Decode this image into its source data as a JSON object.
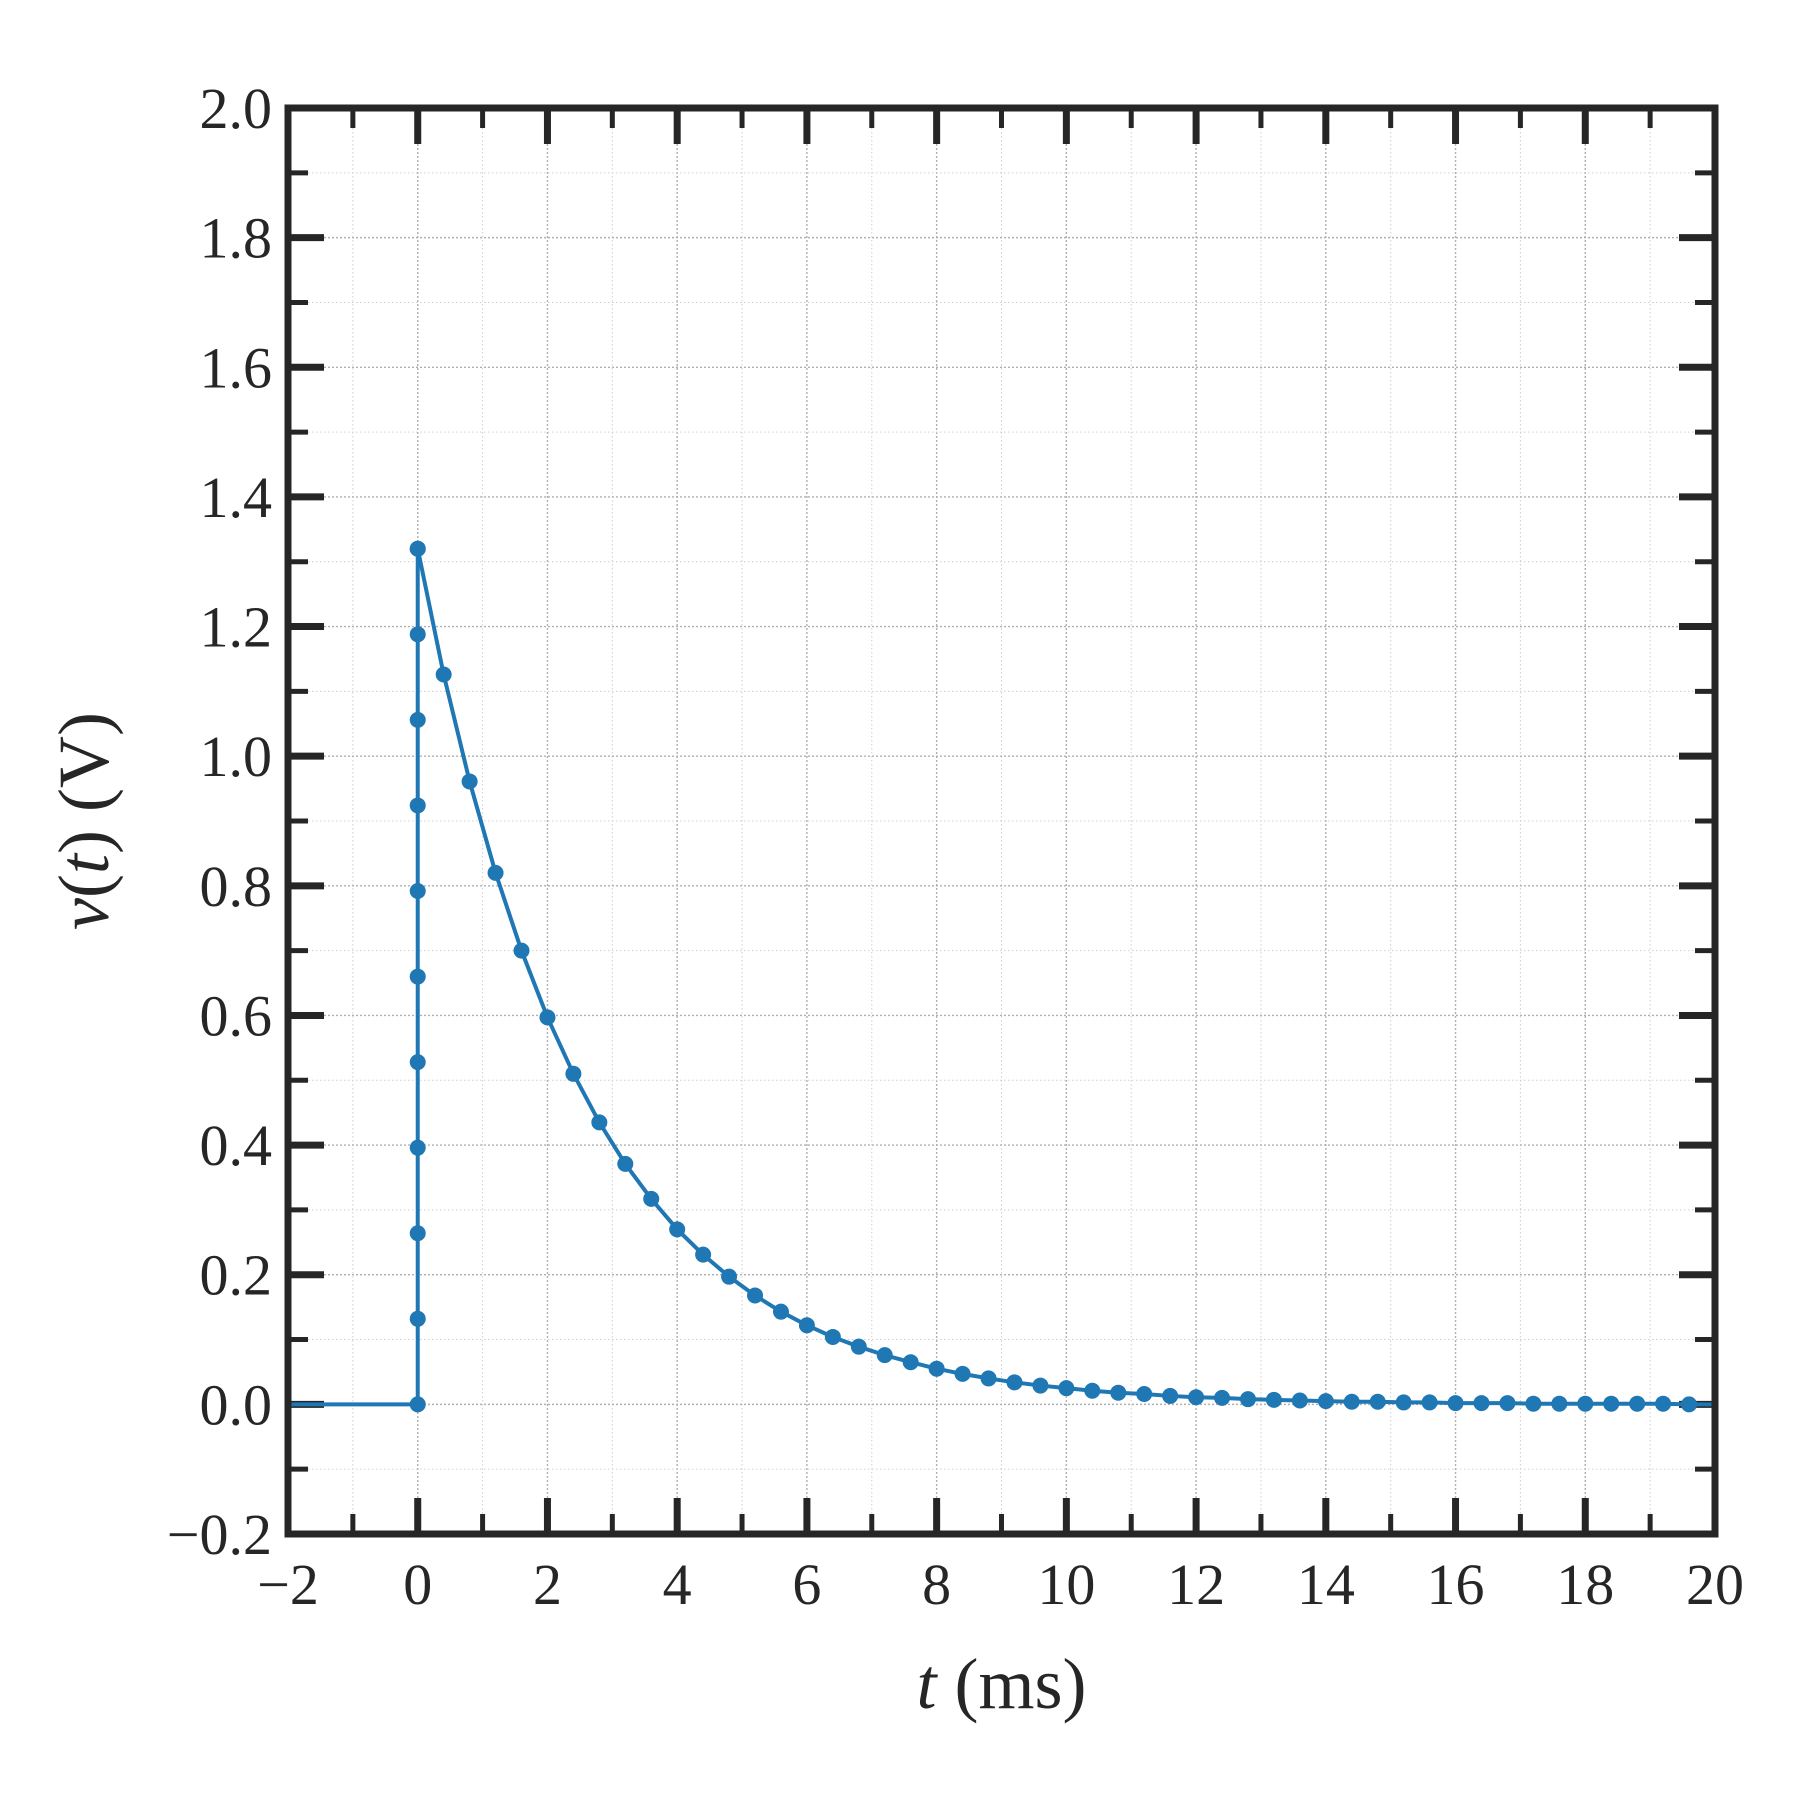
{
  "chart_data": {
    "type": "line",
    "xlabel_var": "t",
    "xlabel_unit": " (ms)",
    "ylabel_var": "v",
    "ylabel_arg": "t",
    "ylabel_unit": " (V)",
    "xlim": [
      -2,
      20
    ],
    "ylim": [
      -0.2,
      2.0
    ],
    "x_ticks": [
      -2,
      0,
      2,
      4,
      6,
      8,
      10,
      12,
      14,
      16,
      18,
      20
    ],
    "x_tick_labels": [
      "−2",
      "0",
      "2",
      "4",
      "6",
      "8",
      "10",
      "12",
      "14",
      "16",
      "18",
      "20"
    ],
    "y_ticks": [
      -0.2,
      0.0,
      0.2,
      0.4,
      0.6,
      0.8,
      1.0,
      1.2,
      1.4,
      1.6,
      1.8,
      2.0
    ],
    "y_tick_labels": [
      "−0.2",
      "0.0",
      "0.2",
      "0.4",
      "0.6",
      "0.8",
      "1.0",
      "1.2",
      "1.4",
      "1.6",
      "1.8",
      "2.0"
    ],
    "grid": true,
    "color": "#1f77b4",
    "series": [
      {
        "line": {
          "x": [
            -2,
            0,
            0
          ],
          "y": [
            0,
            0,
            1.32
          ]
        },
        "markers": {
          "x": [
            0,
            0,
            0,
            0,
            0,
            0,
            0,
            0,
            0,
            0,
            0,
            0,
            0.4,
            0.8,
            1.2,
            1.6,
            2.0,
            2.4,
            2.8,
            3.2,
            3.6,
            4.0,
            4.4,
            4.8,
            5.2,
            5.6,
            6.0,
            6.4,
            6.8,
            7.2,
            7.6,
            8.0,
            8.4,
            8.8,
            9.2,
            9.6,
            10.0,
            10.4,
            10.8,
            11.2,
            11.6,
            12.0,
            12.4,
            12.8,
            13.2,
            13.6,
            14.0,
            14.4,
            14.8,
            15.2,
            15.6,
            16.0,
            16.4,
            16.8,
            17.2,
            17.6,
            18.0,
            18.4,
            18.8,
            19.2,
            19.6
          ],
          "y": [
            0.0,
            0.132,
            0.264,
            0.396,
            0.528,
            0.66,
            0.792,
            0.924,
            1.056,
            1.188,
            1.32,
            1.32,
            1.126,
            0.961,
            0.82,
            0.7,
            0.597,
            0.51,
            0.435,
            0.371,
            0.317,
            0.27,
            0.231,
            0.197,
            0.168,
            0.143,
            0.122,
            0.104,
            0.089,
            0.076,
            0.065,
            0.055,
            0.047,
            0.04,
            0.034,
            0.029,
            0.025,
            0.021,
            0.018,
            0.016,
            0.013,
            0.011,
            0.01,
            0.008,
            0.007,
            0.006,
            0.005,
            0.004,
            0.004,
            0.003,
            0.003,
            0.002,
            0.002,
            0.002,
            0.001,
            0.001,
            0.001,
            0.001,
            0.001,
            0.001,
            0.0
          ]
        }
      }
    ]
  }
}
